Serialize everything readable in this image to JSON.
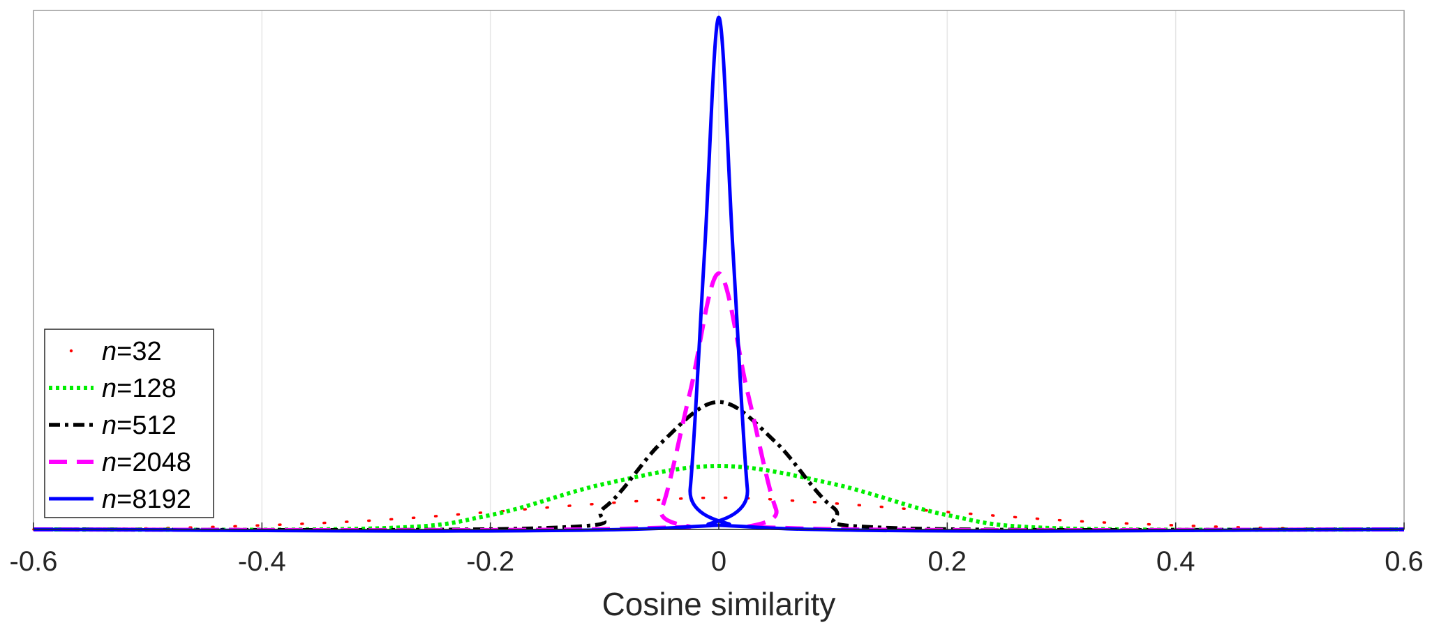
{
  "chart_data": {
    "type": "line",
    "title": "",
    "xlabel": "Cosine similarity",
    "ylabel": "",
    "xlim": [
      -0.6,
      0.6
    ],
    "y_tick_labels_shown": false,
    "x_ticks": [
      -0.6,
      -0.4,
      -0.2,
      0,
      0.2,
      0.4,
      0.6
    ],
    "x_tick_labels": [
      "-0.6",
      "-0.4",
      "-0.2",
      "0",
      "0.2",
      "0.4",
      "0.6"
    ],
    "grid": "vertical",
    "legend_position": "lower-left",
    "peak_relative_height": "n=8192 peak = 1.0 (top of axes)",
    "series": [
      {
        "name_var": "n",
        "name_value": "=32",
        "color": "#ff0000",
        "style": "dotted-sparse",
        "x": [
          -0.6,
          -0.5,
          -0.4,
          -0.3,
          -0.2,
          -0.1,
          0,
          0.1,
          0.2,
          0.3,
          0.4,
          0.5,
          0.6
        ],
        "y": [
          0.0,
          0.002,
          0.008,
          0.018,
          0.034,
          0.051,
          0.062,
          0.051,
          0.034,
          0.018,
          0.008,
          0.002,
          0.0
        ]
      },
      {
        "name_var": "n",
        "name_value": "=128",
        "color": "#00ee00",
        "style": "dotted",
        "x": [
          -0.3,
          -0.2,
          -0.1,
          0,
          0.1,
          0.2,
          0.3
        ],
        "y": [
          0.002,
          0.028,
          0.089,
          0.124,
          0.089,
          0.028,
          0.002
        ]
      },
      {
        "name_var": "n",
        "name_value": "=512",
        "color": "#000000",
        "style": "dashdot",
        "x": [
          -0.15,
          -0.1,
          -0.05,
          0,
          0.05,
          0.1,
          0.15
        ],
        "y": [
          0.003,
          0.043,
          0.17,
          0.249,
          0.17,
          0.043,
          0.003
        ]
      },
      {
        "name_var": "n",
        "name_value": "=2048",
        "color": "#ff00ff",
        "style": "dashed",
        "x": [
          -0.07,
          -0.05,
          -0.025,
          0,
          0.025,
          0.05,
          0.07
        ],
        "y": [
          0.002,
          0.04,
          0.27,
          0.5,
          0.27,
          0.04,
          0.002
        ]
      },
      {
        "name_var": "n",
        "name_value": "=8192",
        "color": "#0000ff",
        "style": "solid",
        "x": [
          -0.035,
          -0.025,
          -0.0125,
          0,
          0.0125,
          0.025,
          0.035
        ],
        "y": [
          0.004,
          0.08,
          0.54,
          1.0,
          0.54,
          0.08,
          0.004
        ]
      }
    ]
  }
}
